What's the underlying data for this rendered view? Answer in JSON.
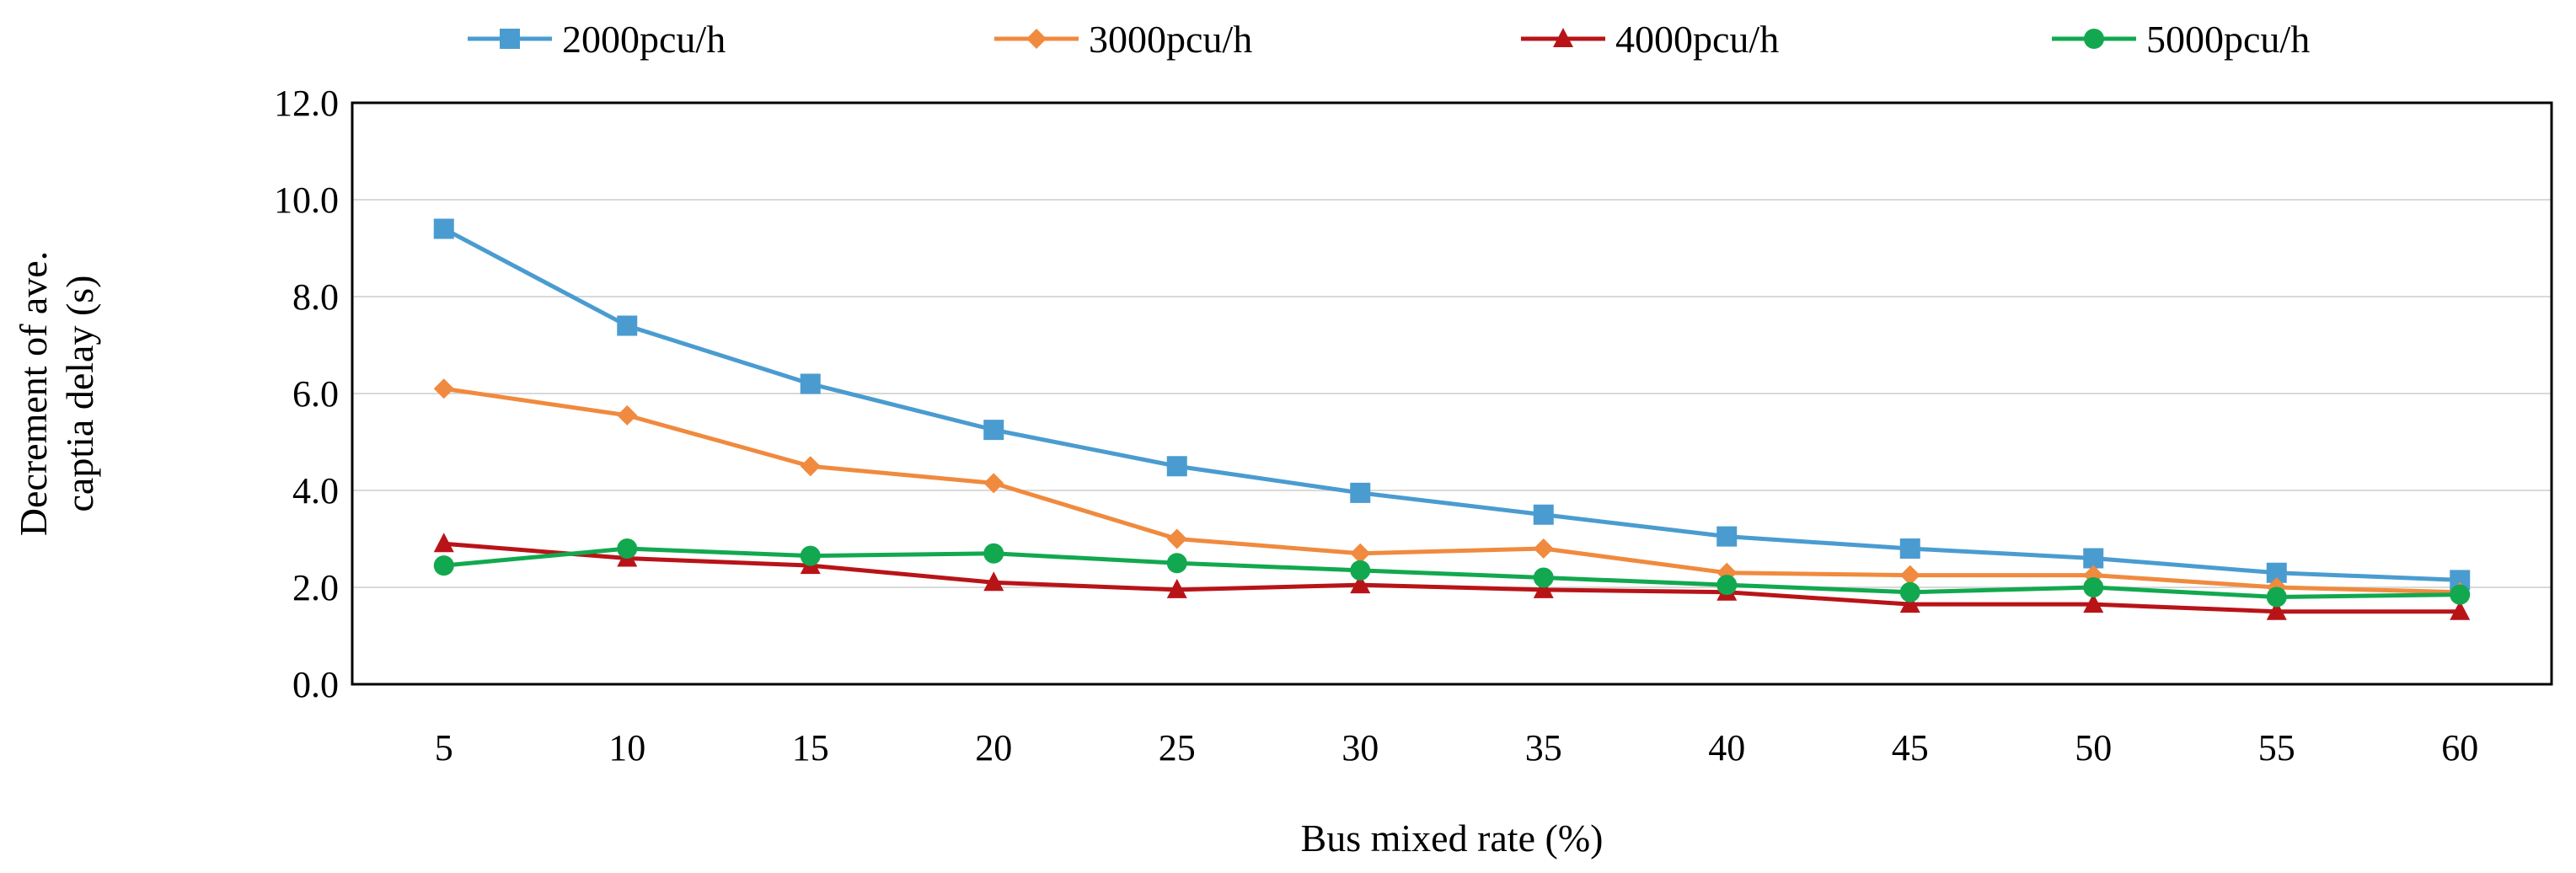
{
  "chart_data": {
    "type": "line",
    "title": "",
    "xlabel": "Bus mixed rate (%)",
    "ylabel_lines": [
      "Decrement of ave.",
      "captia delay (s)"
    ],
    "categories": [
      "5",
      "10",
      "15",
      "20",
      "25",
      "30",
      "35",
      "40",
      "45",
      "50",
      "55",
      "60"
    ],
    "ylim": [
      0,
      12
    ],
    "yticks": [
      "0.0",
      "2.0",
      "4.0",
      "6.0",
      "8.0",
      "10.0",
      "12.0"
    ],
    "grid": true,
    "legend_position": "top",
    "series": [
      {
        "name": "2000pcu/h",
        "color": "#4A9CD0",
        "marker": "square",
        "values": [
          9.4,
          7.4,
          6.2,
          5.25,
          4.5,
          3.95,
          3.5,
          3.05,
          2.8,
          2.6,
          2.3,
          2.15
        ]
      },
      {
        "name": "3000pcu/h",
        "color": "#F08A3E",
        "marker": "diamond",
        "values": [
          6.1,
          5.55,
          4.5,
          4.15,
          3.0,
          2.7,
          2.8,
          2.3,
          2.25,
          2.25,
          2.0,
          1.9
        ]
      },
      {
        "name": "4000pcu/h",
        "color": "#B81418",
        "marker": "triangle",
        "values": [
          2.9,
          2.6,
          2.45,
          2.1,
          1.95,
          2.05,
          1.95,
          1.9,
          1.65,
          1.65,
          1.5,
          1.5
        ]
      },
      {
        "name": "5000pcu/h",
        "color": "#12A84F",
        "marker": "circle",
        "values": [
          2.45,
          2.8,
          2.65,
          2.7,
          2.5,
          2.35,
          2.2,
          2.05,
          1.9,
          2.0,
          1.8,
          1.85
        ]
      }
    ]
  }
}
